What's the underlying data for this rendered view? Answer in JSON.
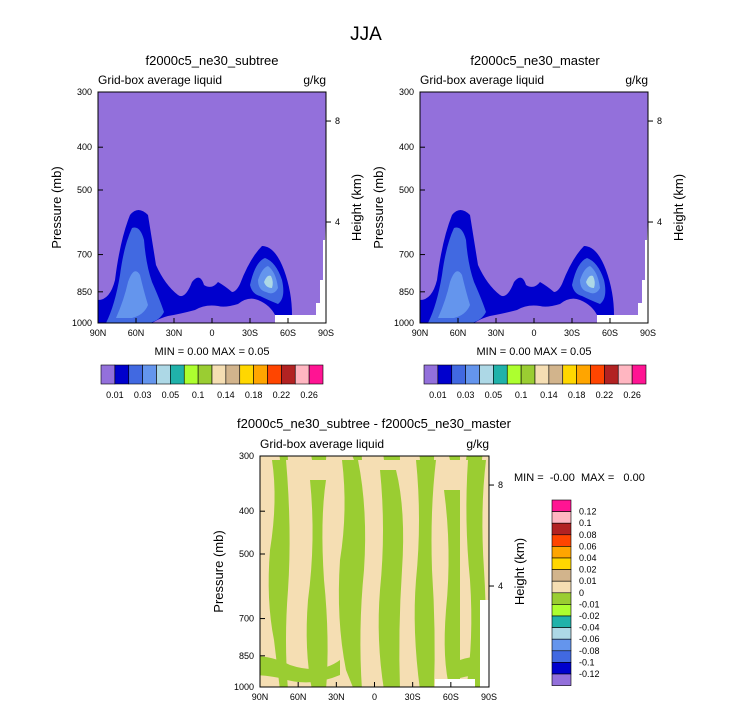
{
  "figure": {
    "title": "JJA"
  },
  "chart_data": [
    {
      "type": "contour",
      "title": "f2000c5_ne30_subtree",
      "left_label": "Grid-box average liquid",
      "right_label": "g/kg",
      "ylabel": "Pressure (mb)",
      "ylabel_right": "Height (km)",
      "x_ticks": [
        "90N",
        "60N",
        "30N",
        "0",
        "30S",
        "60S",
        "90S"
      ],
      "y_ticks": [
        "300",
        "400",
        "500",
        "700",
        "850",
        "1000"
      ],
      "y_tick_values": [
        300,
        400,
        500,
        700,
        850,
        1000
      ],
      "height_ticks": [
        "8",
        "4"
      ],
      "height_tick_values": [
        8,
        4
      ],
      "xlim": [
        90,
        -90
      ],
      "ylim": [
        1000,
        300
      ],
      "stats": "MIN =   0.00  MAX =   0.05",
      "levels": [
        "0.01",
        "0.03",
        "0.05",
        "0.1",
        "0.14",
        "0.18",
        "0.22",
        "0.26"
      ],
      "max_value": 0.05
    },
    {
      "type": "contour",
      "title": "f2000c5_ne30_master",
      "left_label": "Grid-box average liquid",
      "right_label": "g/kg",
      "ylabel": "Pressure (mb)",
      "ylabel_right": "Height (km)",
      "x_ticks": [
        "90N",
        "60N",
        "30N",
        "0",
        "30S",
        "60S",
        "90S"
      ],
      "y_ticks": [
        "300",
        "400",
        "500",
        "700",
        "850",
        "1000"
      ],
      "y_tick_values": [
        300,
        400,
        500,
        700,
        850,
        1000
      ],
      "height_ticks": [
        "8",
        "4"
      ],
      "height_tick_values": [
        8,
        4
      ],
      "xlim": [
        90,
        -90
      ],
      "ylim": [
        1000,
        300
      ],
      "stats": "MIN =   0.00  MAX =   0.05",
      "levels": [
        "0.01",
        "0.03",
        "0.05",
        "0.1",
        "0.14",
        "0.18",
        "0.22",
        "0.26"
      ],
      "max_value": 0.05
    },
    {
      "type": "contour",
      "title": "f2000c5_ne30_subtree - f2000c5_ne30_master",
      "left_label": "Grid-box average liquid",
      "right_label": "g/kg",
      "ylabel": "Pressure (mb)",
      "ylabel_right": "Height (km)",
      "x_ticks": [
        "90N",
        "60N",
        "30N",
        "0",
        "30S",
        "60S",
        "90S"
      ],
      "y_ticks": [
        "300",
        "400",
        "500",
        "700",
        "850",
        "1000"
      ],
      "y_tick_values": [
        300,
        400,
        500,
        700,
        850,
        1000
      ],
      "height_ticks": [
        "8",
        "4"
      ],
      "height_tick_values": [
        8,
        4
      ],
      "xlim": [
        90,
        -90
      ],
      "ylim": [
        1000,
        300
      ],
      "stats": "MIN =  -0.00  MAX =   0.00",
      "levels": [
        "0.12",
        "0.1",
        "0.08",
        "0.06",
        "0.04",
        "0.02",
        "0.01",
        "0",
        "-0.01",
        "-0.02",
        "-0.04",
        "-0.06",
        "-0.08",
        "-0.1",
        "-0.12"
      ]
    }
  ],
  "colorbar_colors": [
    "#9370DB",
    "#0000CD",
    "#4169E1",
    "#6495ED",
    "#ADD8E6",
    "#20B2AA",
    "#ADFF2F",
    "#9ACD32",
    "#F5DEB3",
    "#D2B48C",
    "#FFD700",
    "#FFA500",
    "#FF4500",
    "#B22222",
    "#FFB6C1",
    "#FF1493"
  ],
  "diff_colorbar_colors": [
    "#FF1493",
    "#FFB6C1",
    "#B22222",
    "#FF4500",
    "#FFA500",
    "#FFD700",
    "#D2B48C",
    "#F5DEB3",
    "#9ACD32",
    "#ADFF2F",
    "#20B2AA",
    "#ADD8E6",
    "#6495ED",
    "#4169E1",
    "#0000CD",
    "#9370DB"
  ]
}
